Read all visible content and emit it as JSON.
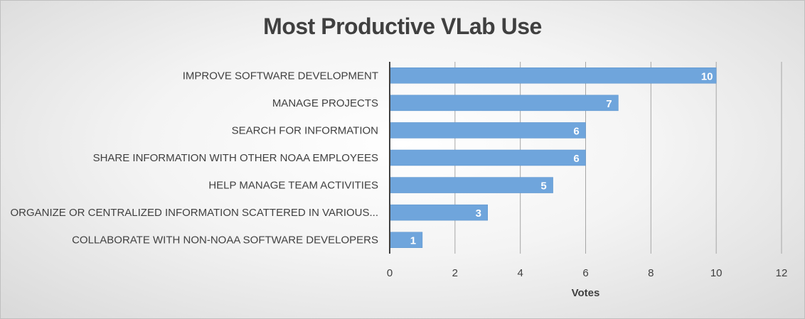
{
  "chart_data": {
    "type": "bar",
    "orientation": "horizontal",
    "title": "Most Productive VLab Use",
    "xlabel": "Votes",
    "ylabel": "",
    "categories": [
      "IMPROVE SOFTWARE DEVELOPMENT",
      "MANAGE PROJECTS",
      "SEARCH FOR INFORMATION",
      "SHARE INFORMATION WITH OTHER NOAA EMPLOYEES",
      "HELP MANAGE TEAM ACTIVITIES",
      "ORGANIZE OR CENTRALIZED INFORMATION SCATTERED IN VARIOUS...",
      "COLLABORATE WITH NON-NOAA SOFTWARE DEVELOPERS"
    ],
    "values": [
      10,
      7,
      6,
      6,
      5,
      3,
      1
    ],
    "xlim": [
      0,
      12
    ],
    "xticks": [
      0,
      2,
      4,
      6,
      8,
      10,
      12
    ],
    "grid": true,
    "legend": "none",
    "colors": {
      "bar": "#6fa5dc",
      "bar_edge": "#5b93cc",
      "grid": "#a6a6a6",
      "axis": "#404040"
    }
  }
}
